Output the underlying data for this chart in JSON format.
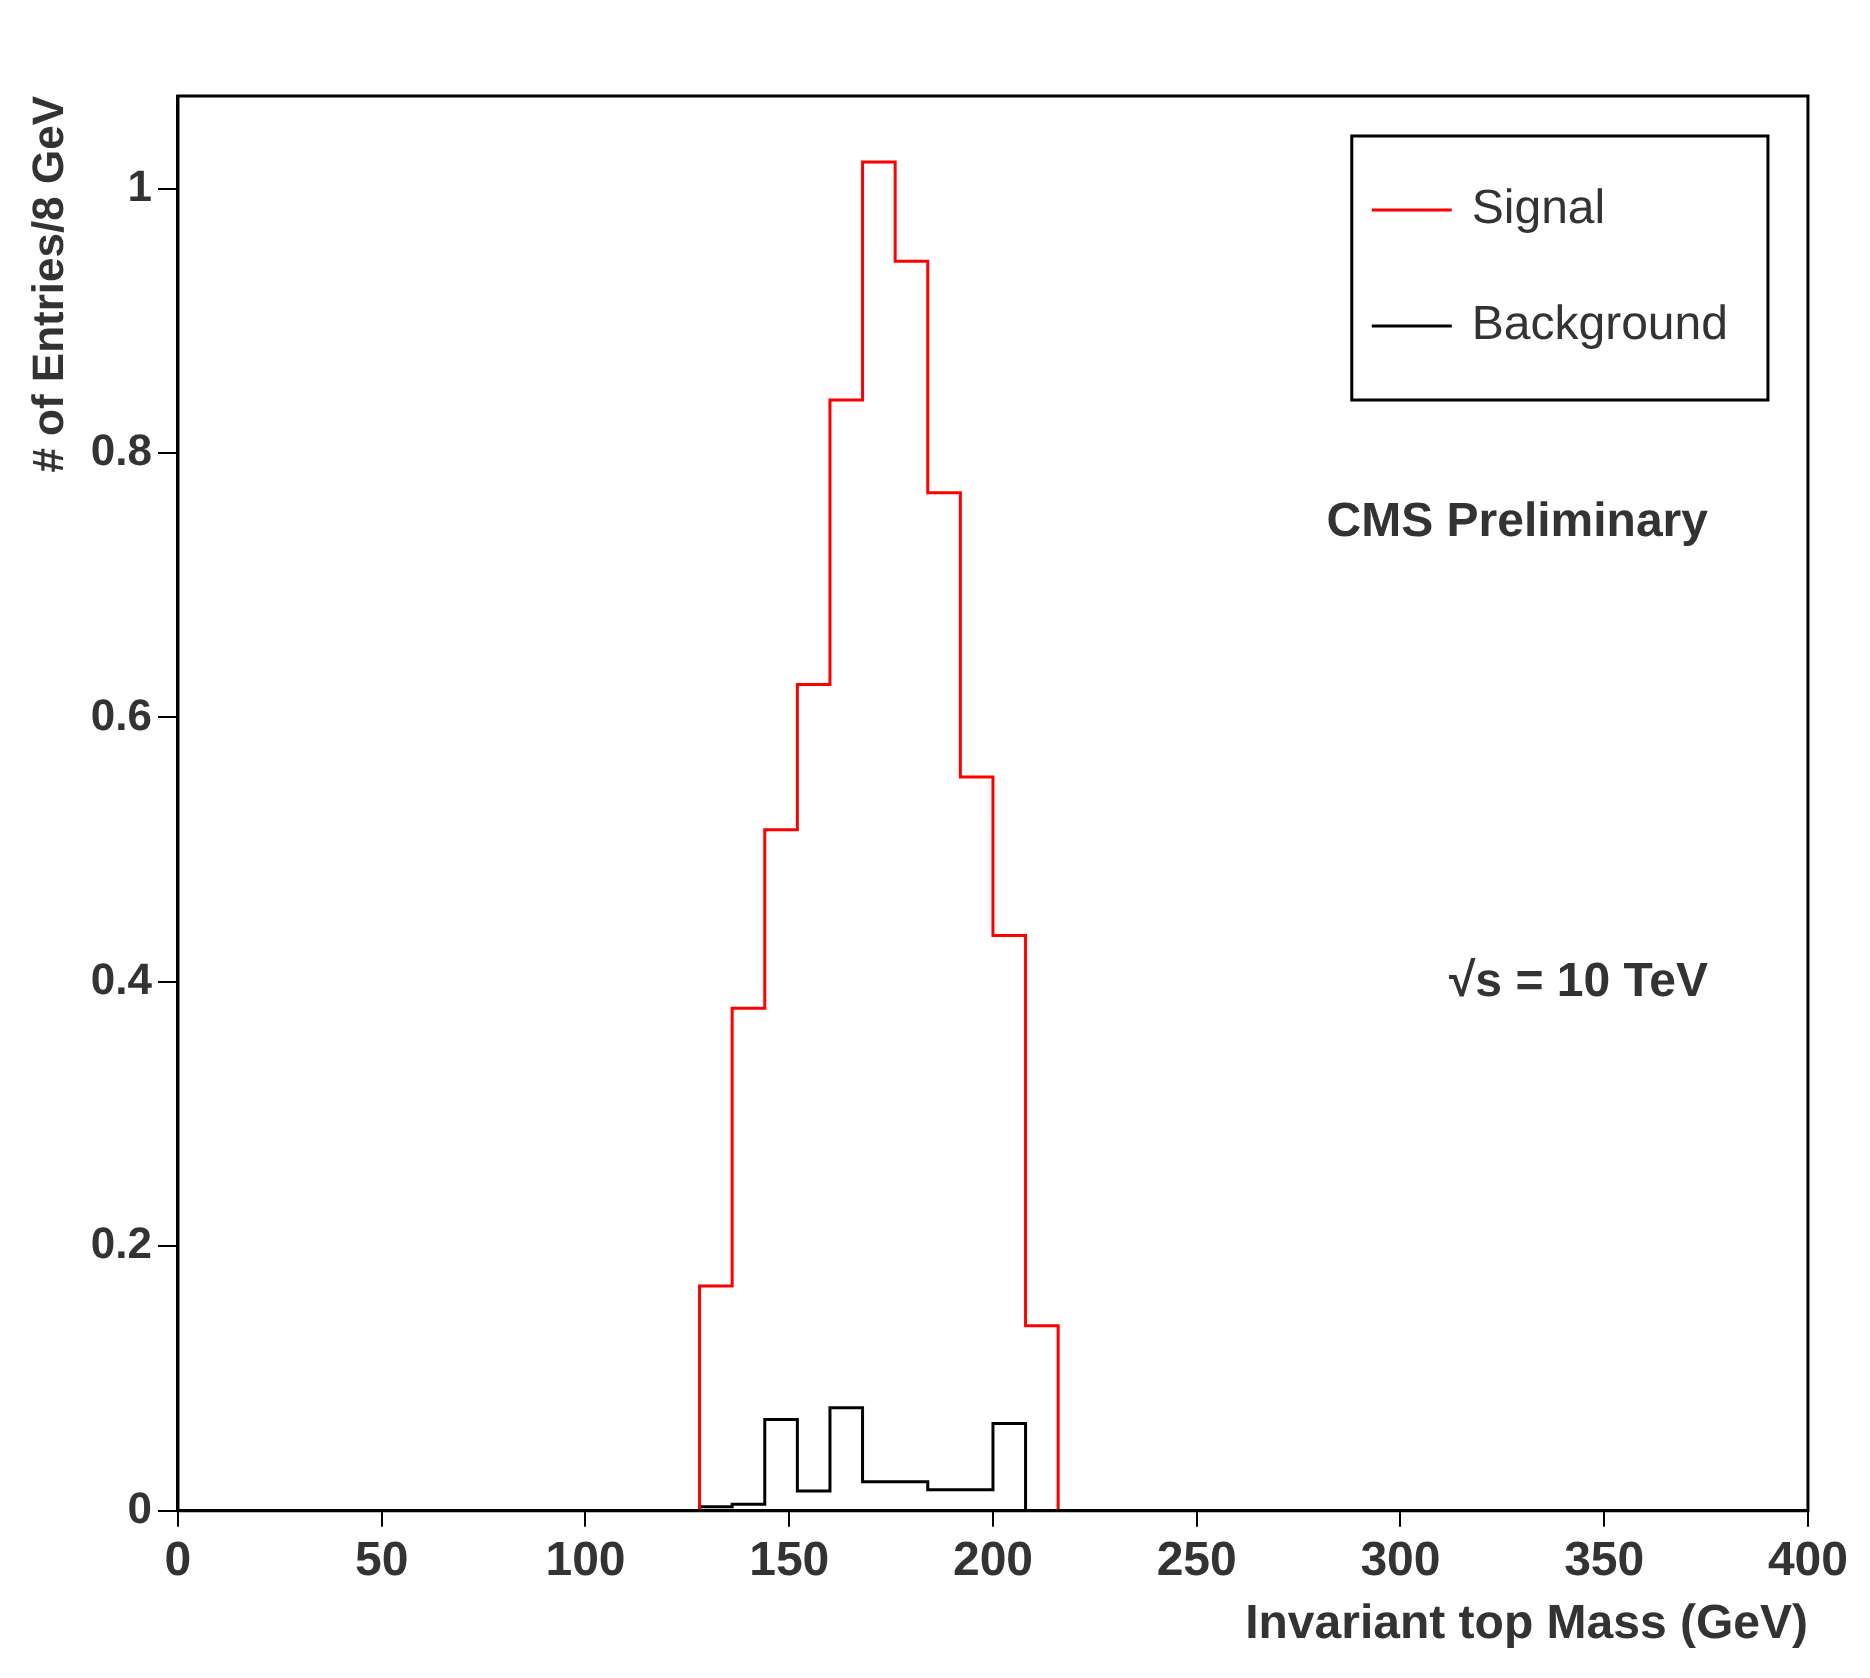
{
  "chart_data": {
    "type": "histogram",
    "xlabel": "Invariant top Mass (GeV)",
    "ylabel": "# of Entries/8 GeV",
    "bins": [
      128,
      136,
      144,
      152,
      160,
      168,
      176,
      184,
      192,
      200,
      208,
      216
    ],
    "series": [
      {
        "name": "Signal",
        "color": "#ff0000",
        "values": [
          0.17,
          0.38,
          0.515,
          0.625,
          0.84,
          1.02,
          0.945,
          0.77,
          0.555,
          0.435,
          0.14
        ]
      },
      {
        "name": "Background",
        "color": "#000000",
        "values": [
          0.003,
          0.005,
          0.069,
          0.015,
          0.078,
          0.022,
          0.022,
          0.016,
          0.016,
          0.066,
          0
        ]
      }
    ],
    "xlim": [
      0,
      400
    ],
    "xticks": [
      0,
      50,
      100,
      150,
      200,
      250,
      300,
      350,
      400
    ],
    "ylim": [
      0,
      1.07
    ],
    "yticks": [
      0,
      0.2,
      0.4,
      0.6,
      0.8,
      1
    ],
    "grid": false,
    "legend": "top right",
    "annotations": [
      "CMS Preliminary",
      "√s = 10 TeV"
    ]
  }
}
